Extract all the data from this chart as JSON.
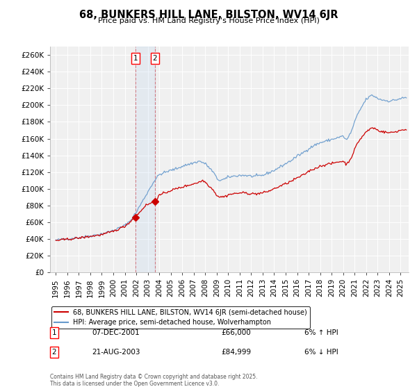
{
  "title": "68, BUNKERS HILL LANE, BILSTON, WV14 6JR",
  "subtitle": "Price paid vs. HM Land Registry's House Price Index (HPI)",
  "ylabel_ticks": [
    "£0",
    "£20K",
    "£40K",
    "£60K",
    "£80K",
    "£100K",
    "£120K",
    "£140K",
    "£160K",
    "£180K",
    "£200K",
    "£220K",
    "£240K",
    "£260K"
  ],
  "ytick_values": [
    0,
    20000,
    40000,
    60000,
    80000,
    100000,
    120000,
    140000,
    160000,
    180000,
    200000,
    220000,
    240000,
    260000
  ],
  "ylim": [
    0,
    270000
  ],
  "xlim_start": 1994.5,
  "xlim_end": 2025.7,
  "xtick_years": [
    1995,
    1996,
    1997,
    1998,
    1999,
    2000,
    2001,
    2002,
    2003,
    2004,
    2005,
    2006,
    2007,
    2008,
    2009,
    2010,
    2011,
    2012,
    2013,
    2014,
    2015,
    2016,
    2017,
    2018,
    2019,
    2020,
    2021,
    2022,
    2023,
    2024,
    2025
  ],
  "hpi_color": "#6699cc",
  "price_color": "#cc0000",
  "transaction1_x": 2001.92,
  "transaction1_y": 66000,
  "transaction2_x": 2003.63,
  "transaction2_y": 84999,
  "vline1_x": 2001.92,
  "vline2_x": 2003.63,
  "legend_entry1": "68, BUNKERS HILL LANE, BILSTON, WV14 6JR (semi-detached house)",
  "legend_entry2": "HPI: Average price, semi-detached house, Wolverhampton",
  "note1_num": "1",
  "note1_date": "07-DEC-2001",
  "note1_price": "£66,000",
  "note1_hpi": "6% ↑ HPI",
  "note2_num": "2",
  "note2_date": "21-AUG-2003",
  "note2_price": "£84,999",
  "note2_hpi": "6% ↓ HPI",
  "footnote": "Contains HM Land Registry data © Crown copyright and database right 2025.\nThis data is licensed under the Open Government Licence v3.0.",
  "background_color": "#ffffff",
  "plot_bg_color": "#f0f0f0",
  "grid_color": "#ffffff"
}
